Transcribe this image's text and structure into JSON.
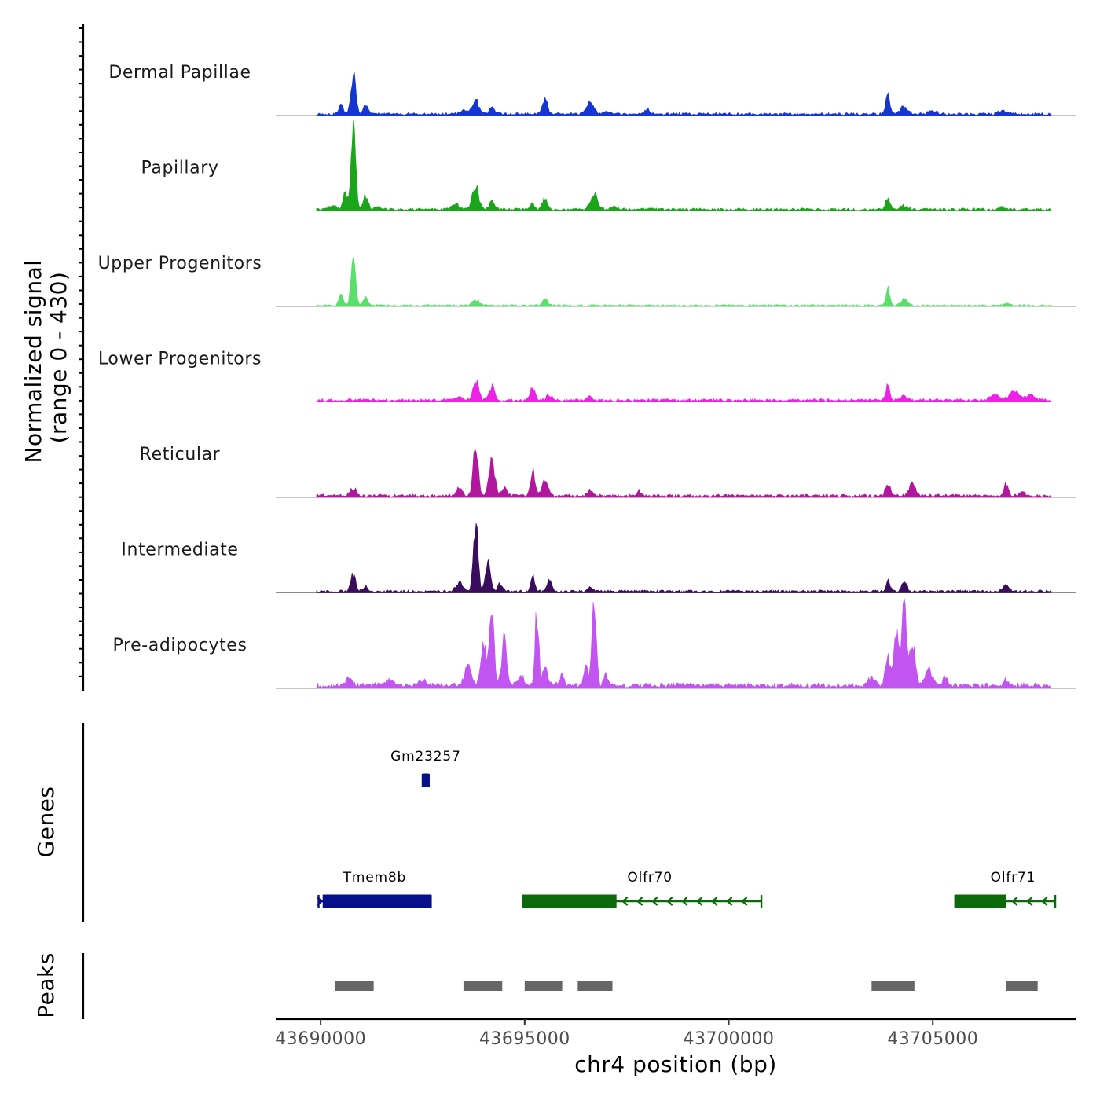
{
  "chart_data": {
    "type": "area",
    "title": "",
    "ylabel_line1": "Normalized signal",
    "ylabel_line2": "(range 0 - 430)",
    "y_range": [
      0,
      430
    ],
    "xlabel": "chr4 position (bp)",
    "xlim": [
      43688900,
      43708500
    ],
    "data_end": 43707900,
    "xticks": [
      43690000,
      43695000,
      43700000,
      43705000
    ],
    "xtick_labels": [
      "43690000",
      "43695000",
      "43700000",
      "43705000"
    ],
    "baseline_color": "#8c8c8c",
    "tracks": [
      {
        "name": "Dermal Papillae",
        "color": "#1636d4",
        "bg": 0.018,
        "peaks": [
          [
            43690500,
            0.12,
            50
          ],
          [
            43690800,
            0.42,
            60
          ],
          [
            43691100,
            0.1,
            60
          ],
          [
            43693500,
            0.05,
            80
          ],
          [
            43693800,
            0.15,
            80
          ],
          [
            43694200,
            0.06,
            80
          ],
          [
            43695500,
            0.18,
            60
          ],
          [
            43696600,
            0.13,
            90
          ],
          [
            43697000,
            0.03,
            80
          ],
          [
            43698000,
            0.05,
            60
          ],
          [
            43703900,
            0.22,
            50
          ],
          [
            43704300,
            0.08,
            90
          ],
          [
            43705000,
            0.04,
            100
          ],
          [
            43706700,
            0.04,
            80
          ]
        ]
      },
      {
        "name": "Papillary",
        "color": "#1aa51a",
        "bg": 0.018,
        "peaks": [
          [
            43690300,
            0.05,
            70
          ],
          [
            43690600,
            0.18,
            50
          ],
          [
            43690800,
            1.0,
            55
          ],
          [
            43691100,
            0.17,
            60
          ],
          [
            43691400,
            0.04,
            60
          ],
          [
            43693300,
            0.06,
            90
          ],
          [
            43693800,
            0.24,
            80
          ],
          [
            43694200,
            0.08,
            70
          ],
          [
            43695200,
            0.06,
            50
          ],
          [
            43695500,
            0.12,
            60
          ],
          [
            43696700,
            0.16,
            90
          ],
          [
            43697200,
            0.03,
            80
          ],
          [
            43703900,
            0.15,
            50
          ],
          [
            43704300,
            0.04,
            90
          ],
          [
            43706700,
            0.03,
            60
          ]
        ]
      },
      {
        "name": "Upper Progenitors",
        "color": "#5ae06a",
        "bg": 0.012,
        "peaks": [
          [
            43690500,
            0.14,
            50
          ],
          [
            43690800,
            0.57,
            55
          ],
          [
            43691100,
            0.1,
            60
          ],
          [
            43693800,
            0.06,
            90
          ],
          [
            43695500,
            0.08,
            60
          ],
          [
            43703900,
            0.18,
            50
          ],
          [
            43704300,
            0.07,
            80
          ],
          [
            43706800,
            0.03,
            60
          ]
        ]
      },
      {
        "name": "Lower Progenitors",
        "color": "#ee22e6",
        "bg": 0.02,
        "peaks": [
          [
            43693400,
            0.04,
            80
          ],
          [
            43693800,
            0.22,
            70
          ],
          [
            43694200,
            0.14,
            70
          ],
          [
            43695200,
            0.14,
            60
          ],
          [
            43695600,
            0.06,
            70
          ],
          [
            43696600,
            0.05,
            50
          ],
          [
            43703900,
            0.15,
            50
          ],
          [
            43704300,
            0.05,
            80
          ],
          [
            43706500,
            0.06,
            100
          ],
          [
            43707000,
            0.1,
            120
          ],
          [
            43707400,
            0.06,
            100
          ]
        ]
      },
      {
        "name": "Reticular",
        "color": "#b3169e",
        "bg": 0.02,
        "peaks": [
          [
            43690800,
            0.08,
            70
          ],
          [
            43693400,
            0.08,
            70
          ],
          [
            43693800,
            0.55,
            60
          ],
          [
            43694200,
            0.4,
            70
          ],
          [
            43694500,
            0.1,
            60
          ],
          [
            43695200,
            0.3,
            50
          ],
          [
            43695500,
            0.18,
            70
          ],
          [
            43696600,
            0.06,
            60
          ],
          [
            43697800,
            0.05,
            50
          ],
          [
            43703900,
            0.13,
            60
          ],
          [
            43704500,
            0.13,
            70
          ],
          [
            43706800,
            0.14,
            50
          ],
          [
            43707200,
            0.05,
            60
          ]
        ]
      },
      {
        "name": "Intermediate",
        "color": "#3a0c5e",
        "bg": 0.018,
        "peaks": [
          [
            43690800,
            0.18,
            60
          ],
          [
            43691100,
            0.05,
            60
          ],
          [
            43693400,
            0.1,
            80
          ],
          [
            43693800,
            0.78,
            55
          ],
          [
            43694100,
            0.34,
            60
          ],
          [
            43694400,
            0.08,
            60
          ],
          [
            43695200,
            0.16,
            50
          ],
          [
            43695600,
            0.12,
            60
          ],
          [
            43696600,
            0.05,
            60
          ],
          [
            43703900,
            0.12,
            50
          ],
          [
            43704300,
            0.11,
            60
          ],
          [
            43706800,
            0.08,
            70
          ]
        ]
      },
      {
        "name": "Pre-adipocytes",
        "color": "#c255f2",
        "bg": 0.035,
        "peaks": [
          [
            43690700,
            0.07,
            80
          ],
          [
            43691700,
            0.07,
            80
          ],
          [
            43692500,
            0.06,
            60
          ],
          [
            43693600,
            0.25,
            70
          ],
          [
            43694000,
            0.45,
            70
          ],
          [
            43694200,
            0.92,
            50
          ],
          [
            43694500,
            0.55,
            60
          ],
          [
            43694900,
            0.12,
            70
          ],
          [
            43695300,
            0.8,
            45
          ],
          [
            43695500,
            0.22,
            60
          ],
          [
            43695900,
            0.1,
            60
          ],
          [
            43696500,
            0.18,
            60
          ],
          [
            43696700,
            1.0,
            50
          ],
          [
            43697000,
            0.12,
            60
          ],
          [
            43703500,
            0.08,
            80
          ],
          [
            43703900,
            0.3,
            60
          ],
          [
            43704100,
            0.55,
            60
          ],
          [
            43704300,
            1.0,
            60
          ],
          [
            43704500,
            0.45,
            70
          ],
          [
            43704900,
            0.18,
            80
          ],
          [
            43705300,
            0.1,
            60
          ],
          [
            43706800,
            0.06,
            60
          ]
        ]
      }
    ],
    "genes_label": "Genes",
    "genes": [
      {
        "name": "Gm23257",
        "start": 43692500,
        "end": 43692650,
        "strand": "+",
        "color": "#070f8a",
        "thick": [
          43692500,
          43692650
        ],
        "row": 0
      },
      {
        "name": "Tmem8b",
        "start": 43689950,
        "end": 43692700,
        "strand": "+",
        "color": "#070f8a",
        "thick": [
          43690050,
          43692700
        ],
        "row": 1
      },
      {
        "name": "Olfr70",
        "start": 43694950,
        "end": 43700800,
        "strand": "-",
        "color": "#0c6a0a",
        "thick": [
          43694950,
          43697250
        ],
        "row": 1
      },
      {
        "name": "Olfr71",
        "start": 43705550,
        "end": 43708000,
        "strand": "-",
        "color": "#0c6a0a",
        "thick": [
          43705550,
          43706800
        ],
        "row": 1
      }
    ],
    "peaks_label": "Peaks",
    "peak_color": "#666666",
    "peak_regions": [
      [
        43690350,
        43691300
      ],
      [
        43693500,
        43694450
      ],
      [
        43695000,
        43695920
      ],
      [
        43696300,
        43697150
      ],
      [
        43703500,
        43704550
      ],
      [
        43706800,
        43707570
      ]
    ]
  }
}
